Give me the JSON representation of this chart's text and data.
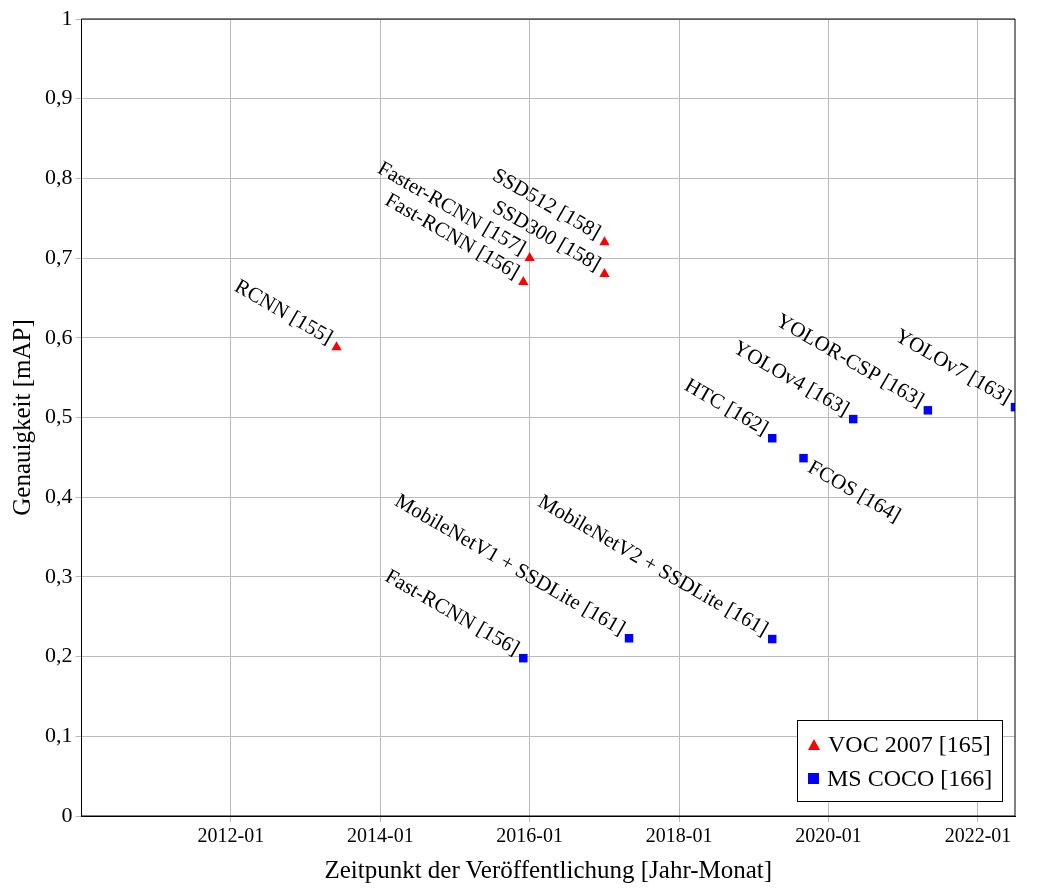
{
  "chart_data": {
    "type": "scatter",
    "xlabel": "Zeitpunkt der Veröffentlichung [Jahr-Monat]",
    "ylabel": "Genauigkeit [mAP]",
    "xlim": [
      "2010-01",
      "2022-07"
    ],
    "xticks": [
      "2012-01",
      "2014-01",
      "2016-01",
      "2018-01",
      "2020-01",
      "2022-01"
    ],
    "ylim": [
      0,
      1
    ],
    "yticks": [
      0,
      {
        "value": 0.1,
        "label": "0,1"
      },
      {
        "value": 0.2,
        "label": "0,2"
      },
      {
        "value": 0.3,
        "label": "0,3"
      },
      {
        "value": 0.4,
        "label": "0,4"
      },
      {
        "value": 0.5,
        "label": "0,5"
      },
      {
        "value": 0.6,
        "label": "0,6"
      },
      {
        "value": 0.7,
        "label": "0,7"
      },
      {
        "value": 0.8,
        "label": "0,8"
      },
      {
        "value": 0.9,
        "label": "0,9"
      },
      1
    ],
    "grid": true,
    "legend": "bottom right",
    "series": [
      {
        "name": "VOC 2007 [165]",
        "color": "#ff0000",
        "marker": "triangle",
        "x": [
          "2013-06",
          "2015-12",
          "2016-01",
          "2017-01",
          "2017-01"
        ],
        "values": [
          0.588,
          0.67,
          0.7,
          0.68,
          0.72
        ]
      },
      {
        "name": "MS COCO [166]",
        "color": "#0000ff",
        "marker": "square",
        "x": [
          "2015-12",
          "2017-05",
          "2019-04",
          "2019-04",
          "2019-09",
          "2020-05",
          "2021-05",
          "2022-07"
        ],
        "values": [
          0.198,
          0.223,
          0.222,
          0.474,
          0.449,
          0.498,
          0.509,
          0.513
        ]
      }
    ],
    "annotations": [
      {
        "text": "RCNN [155]",
        "x": "2013-06",
        "y": 0.588
      },
      {
        "text": "Fast-RCNN [156]",
        "x": "2015-12",
        "y": 0.67
      },
      {
        "text": "Faster-RCNN [157]",
        "x": "2016-01",
        "y": 0.7
      },
      {
        "text": "SSD300 [158]",
        "x": "2017-01",
        "y": 0.68
      },
      {
        "text": "SSD512 [158]",
        "x": "2017-01",
        "y": 0.72
      },
      {
        "text": "Fast-RCNN [156]",
        "x": "2015-12",
        "y": 0.198
      },
      {
        "text": "MobileNetV1 + SSDLite [161]",
        "x": "2017-05",
        "y": 0.223
      },
      {
        "text": "MobileNetV2 + SSDLite [161]",
        "x": "2019-04",
        "y": 0.222
      },
      {
        "text": "HTC [162]",
        "x": "2019-04",
        "y": 0.474
      },
      {
        "text": "FCOS [164]",
        "x": "2019-09",
        "y": 0.449
      },
      {
        "text": "YOLOv4 [163]",
        "x": "2020-05",
        "y": 0.498
      },
      {
        "text": "YOLOR-CSP [163]",
        "x": "2021-05",
        "y": 0.509
      },
      {
        "text": "YOLOv7 [163]",
        "x": "2022-07",
        "y": 0.513
      }
    ]
  }
}
